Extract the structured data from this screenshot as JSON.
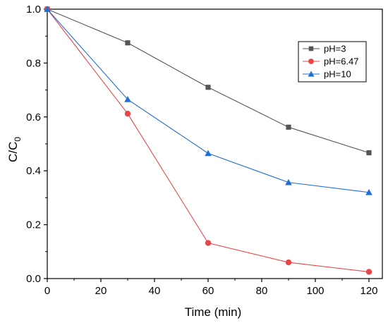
{
  "chart_data": {
    "type": "line",
    "xlabel": "Time (min)",
    "ylabel_main": "C/C",
    "ylabel_sub": "0",
    "xlim": [
      0,
      125
    ],
    "ylim": [
      0,
      1.0
    ],
    "xticks": [
      0,
      20,
      40,
      60,
      80,
      100,
      120
    ],
    "xtick_labels": [
      "0",
      "20",
      "40",
      "60",
      "80",
      "100",
      "120"
    ],
    "yticks": [
      0,
      0.2,
      0.4,
      0.6,
      0.8,
      1.0
    ],
    "ytick_labels": [
      "0.0",
      "0.2",
      "0.4",
      "0.6",
      "0.8",
      "1.0"
    ],
    "grid": false,
    "legend_position": "top-right",
    "x": [
      0,
      30,
      60,
      90,
      120
    ],
    "series": [
      {
        "name": "pH=3",
        "values": [
          1.0,
          0.875,
          0.71,
          0.562,
          0.467
        ],
        "color": "#555555",
        "marker": "square"
      },
      {
        "name": "pH=6.47",
        "values": [
          1.0,
          0.612,
          0.132,
          0.06,
          0.025
        ],
        "color": "#e8474a",
        "marker": "circle"
      },
      {
        "name": "pH=10",
        "values": [
          1.0,
          0.665,
          0.465,
          0.357,
          0.32
        ],
        "color": "#1f6fd6",
        "marker": "triangle"
      }
    ]
  }
}
